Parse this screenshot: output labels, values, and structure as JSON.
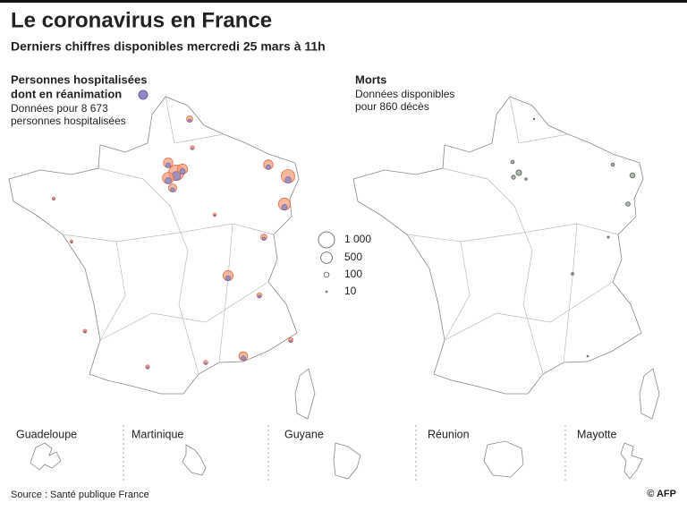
{
  "header": {
    "title": "Le coronavirus en France",
    "subtitle": "Derniers chiffres disponibles mercredi 25 mars à 11h"
  },
  "left_map": {
    "title_line1": "Personnes hospitalisées",
    "title_line2": "dont en réanimation",
    "note_line1": "Données pour 8 673",
    "note_line2": "personnes hospitalisées",
    "hospitalised": [
      900,
      500,
      400,
      700,
      550,
      350,
      400,
      300,
      150,
      350,
      250,
      60,
      150,
      50,
      60,
      70,
      80,
      30,
      30,
      100,
      40
    ],
    "icu": [
      300,
      150,
      120,
      150,
      120,
      80,
      100,
      80,
      40,
      90,
      70,
      15,
      40,
      15,
      20,
      20,
      20,
      8,
      10,
      30,
      10
    ]
  },
  "right_map": {
    "title": "Morts",
    "note_line1": "Données disponibles",
    "note_line2": "pour 860 décès",
    "deaths": [
      120,
      60,
      100,
      70,
      40,
      45,
      25,
      10,
      8,
      15,
      20
    ]
  },
  "legend": {
    "sizes": [
      {
        "value": 1000,
        "label": "1 000"
      },
      500,
      100,
      10
    ]
  },
  "territories": [
    "Guadeloupe",
    "Martinique",
    "Guyane",
    "Réunion",
    "Mayotte"
  ],
  "source": "Source : Santé publique France",
  "credit": "© AFP"
}
